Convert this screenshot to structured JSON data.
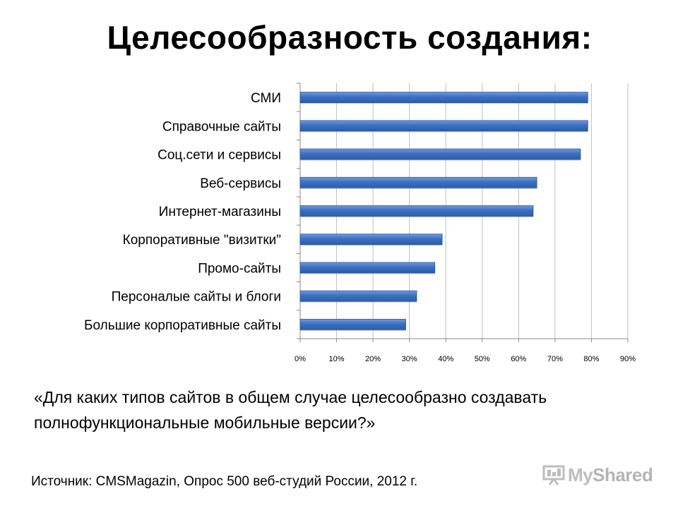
{
  "title": "Целесообразность создания:",
  "question": "«Для каких типов сайтов в общем случае целесообразно создавать полнофункциональные мобильные версии?»",
  "source": "Источник: CMSMagazin, Опрос 500 веб-студий России, 2012 г.",
  "watermark": {
    "text_a": "My",
    "text_b": "Shared"
  },
  "colors": {
    "bar": "#3b6fc0",
    "bar_edge": "#2a559e",
    "grid": "#bfbfbf"
  },
  "chart_data": {
    "type": "bar",
    "orientation": "horizontal",
    "categories": [
      "СМИ",
      "Справочные сайты",
      "Соц.сети и сервисы",
      "Веб-сервисы",
      "Интернет-магазины",
      "Корпоративные \"визитки\"",
      "Промо-сайты",
      "Персоналые сайты и блоги",
      "Большие корпоративные сайты"
    ],
    "values": [
      0.79,
      0.79,
      0.77,
      0.65,
      0.64,
      0.39,
      0.37,
      0.32,
      0.29
    ],
    "xlim": [
      0,
      0.9
    ],
    "xticks": [
      "0%",
      "10%",
      "20%",
      "30%",
      "40%",
      "50%",
      "60%",
      "70%",
      "80%",
      "90%"
    ],
    "grid": true,
    "legend": "none"
  }
}
